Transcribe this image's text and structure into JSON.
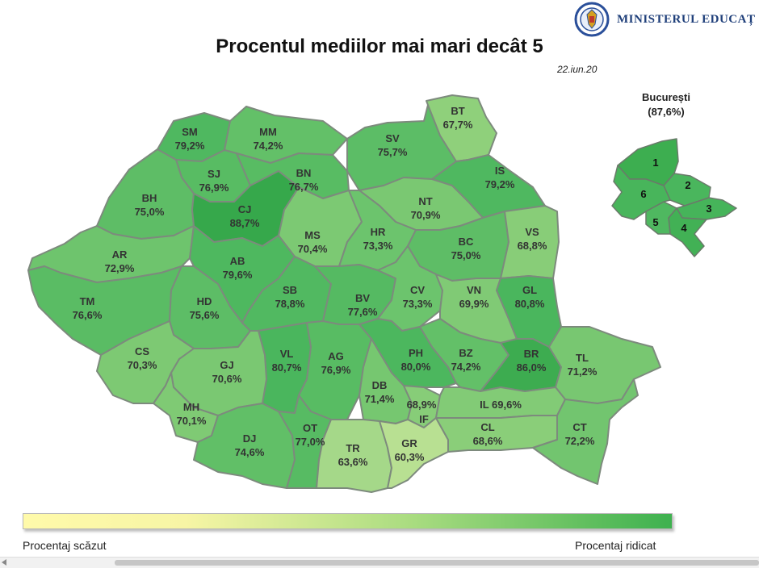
{
  "header": {
    "ministry": "MINISTERUL EDUCAȚ",
    "title": "Procentul mediilor mai mari decât 5",
    "date": "22.iun.20"
  },
  "colors": {
    "low": "#fffaaa",
    "high": "#3eb14f",
    "border": "#7d8a7d"
  },
  "counties": [
    {
      "code": "SM",
      "value": "79,2%",
      "color": "#4fb860"
    },
    {
      "code": "MM",
      "value": "74,2%",
      "color": "#63c068"
    },
    {
      "code": "SV",
      "value": "75,7%",
      "color": "#5cbd66"
    },
    {
      "code": "BT",
      "value": "67,7%",
      "color": "#8fd07b"
    },
    {
      "code": "SJ",
      "value": "76,9%",
      "color": "#58bc63"
    },
    {
      "code": "BN",
      "value": "76,7%",
      "color": "#58bc63"
    },
    {
      "code": "IS",
      "value": "79,2%",
      "color": "#4fb860"
    },
    {
      "code": "BH",
      "value": "75,0%",
      "color": "#5ebd66"
    },
    {
      "code": "CJ",
      "value": "88,7%",
      "color": "#36a84b"
    },
    {
      "code": "NT",
      "value": "70,9%",
      "color": "#7ac872"
    },
    {
      "code": "MS",
      "value": "70,4%",
      "color": "#7cc973"
    },
    {
      "code": "HR",
      "value": "73,3%",
      "color": "#6cc46d"
    },
    {
      "code": "AR",
      "value": "72,9%",
      "color": "#6ec46d"
    },
    {
      "code": "AB",
      "value": "79,6%",
      "color": "#4eb85f"
    },
    {
      "code": "BC",
      "value": "75,0%",
      "color": "#5ebd66"
    },
    {
      "code": "VS",
      "value": "68,8%",
      "color": "#88cd78"
    },
    {
      "code": "TM",
      "value": "76,6%",
      "color": "#5abc64"
    },
    {
      "code": "HD",
      "value": "75,6%",
      "color": "#5dbd66"
    },
    {
      "code": "SB",
      "value": "78,8%",
      "color": "#51b961"
    },
    {
      "code": "BV",
      "value": "77,6%",
      "color": "#55ba62"
    },
    {
      "code": "CV",
      "value": "73,3%",
      "color": "#6cc46d"
    },
    {
      "code": "VN",
      "value": "69,9%",
      "color": "#80ca75"
    },
    {
      "code": "GL",
      "value": "80,8%",
      "color": "#4ab65d"
    },
    {
      "code": "CS",
      "value": "70,3%",
      "color": "#7dc973"
    },
    {
      "code": "VL",
      "value": "80,7%",
      "color": "#4ab65d"
    },
    {
      "code": "AG",
      "value": "76,9%",
      "color": "#58bc63"
    },
    {
      "code": "PH",
      "value": "80,0%",
      "color": "#4cb75e"
    },
    {
      "code": "BZ",
      "value": "74,2%",
      "color": "#63c068"
    },
    {
      "code": "BR",
      "value": "86,0%",
      "color": "#3dac50"
    },
    {
      "code": "TL",
      "value": "71,2%",
      "color": "#78c771"
    },
    {
      "code": "GJ",
      "value": "70,6%",
      "color": "#7ac872"
    },
    {
      "code": "DB",
      "value": "71,4%",
      "color": "#76c770"
    },
    {
      "code": "MH",
      "value": "70,1%",
      "color": "#7fca74"
    },
    {
      "code": "IF",
      "value": "68,9%",
      "color": "#87cd78"
    },
    {
      "code": "IL",
      "value": "69,6%",
      "color": "#82cb76"
    },
    {
      "code": "DJ",
      "value": "74,6%",
      "color": "#61bf67"
    },
    {
      "code": "OT",
      "value": "77,0%",
      "color": "#57bb63"
    },
    {
      "code": "TR",
      "value": "63,6%",
      "color": "#a5d889"
    },
    {
      "code": "GR",
      "value": "60,3%",
      "color": "#b8e092"
    },
    {
      "code": "CL",
      "value": "68,6%",
      "color": "#8ace79"
    },
    {
      "code": "CT",
      "value": "72,2%",
      "color": "#72c56f"
    }
  ],
  "bucuresti": {
    "name": "București",
    "value": "(87,6%)",
    "sectors": [
      {
        "label": "1",
        "color": "#3dae50"
      },
      {
        "label": "2",
        "color": "#4ab65d"
      },
      {
        "label": "3",
        "color": "#46b45a"
      },
      {
        "label": "4",
        "color": "#42b155"
      },
      {
        "label": "5",
        "color": "#4fb860"
      },
      {
        "label": "6",
        "color": "#48b55b"
      }
    ]
  },
  "legend": {
    "low": "Procentaj scăzut",
    "high": "Procentaj ridicat"
  }
}
